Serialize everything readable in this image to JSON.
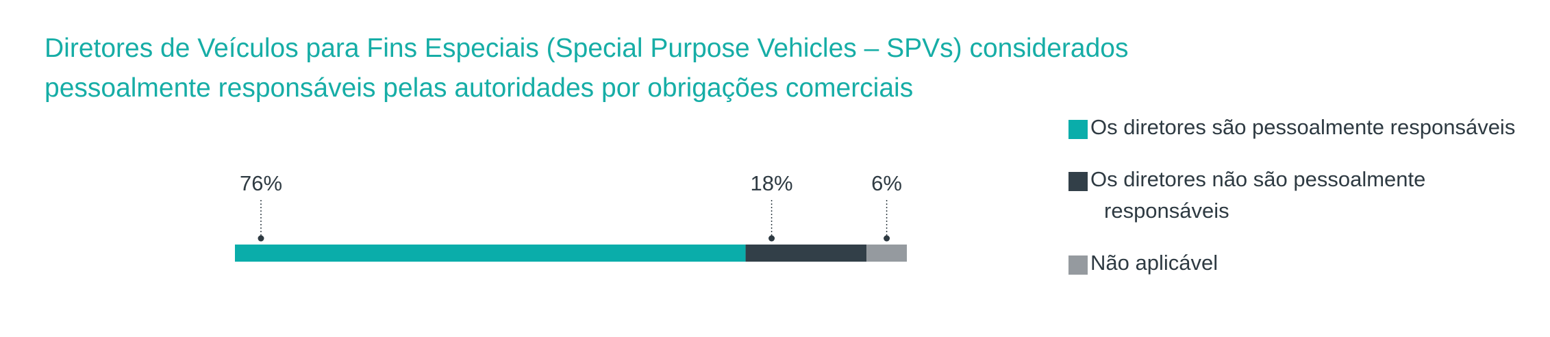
{
  "title": {
    "line1": "Diretores de Veículos para Fins Especiais (Special Purpose Vehicles – SPVs) considerados",
    "line2": "pessoalmente responsáveis pelas autoridades por obrigações comerciais"
  },
  "colors": {
    "title": "#16ada6",
    "text": "#2e3a42",
    "dotted_line": "#2e3a42"
  },
  "chart_data": {
    "type": "bar",
    "orientation": "horizontal-stacked",
    "title": "Diretores de Veículos para Fins Especiais (Special Purpose Vehicles – SPVs) considerados pessoalmente responsáveis pelas autoridades por obrigações comerciais",
    "categories": [
      ""
    ],
    "series": [
      {
        "name": "Os diretores são pessoalmente responsáveis",
        "values": [
          76
        ],
        "label": "76%",
        "color": "#0aadaa"
      },
      {
        "name": "Os diretores não são pessoalmente responsáveis",
        "values": [
          18
        ],
        "label": "18%",
        "color": "#323f48"
      },
      {
        "name": "Não aplicável",
        "values": [
          6
        ],
        "label": "6%",
        "color": "#959a9f"
      }
    ],
    "xlim": [
      0,
      100
    ],
    "grid": false,
    "legend_position": "right"
  },
  "legend": [
    {
      "label": "Os diretores são pessoalmente responsáveis",
      "color": "#0aadaa"
    },
    {
      "label": "Os diretores não são pessoalmente responsáveis",
      "color": "#323f48"
    },
    {
      "label": "Não aplicável",
      "color": "#959a9f"
    }
  ]
}
